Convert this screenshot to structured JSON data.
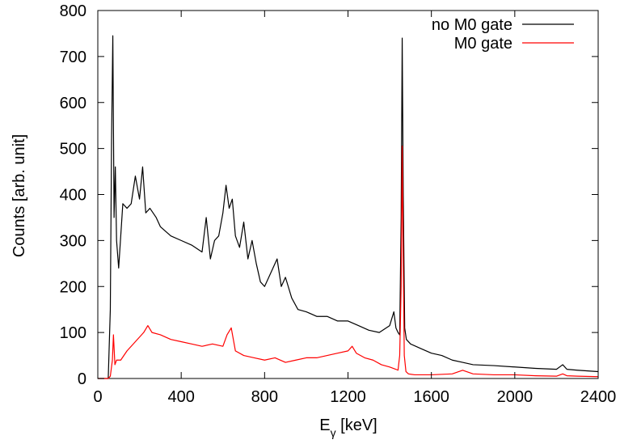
{
  "chart_data": {
    "type": "line",
    "title": "",
    "xlabel_main": "E",
    "xlabel_sub": "γ",
    "xlabel_unit": " [keV]",
    "ylabel": "Counts [arb. unit]",
    "xlim": [
      0,
      2400
    ],
    "ylim": [
      0,
      800
    ],
    "xticks": [
      "0",
      "400",
      "800",
      "1200",
      "1600",
      "2000",
      "2400"
    ],
    "yticks": [
      "0",
      "100",
      "200",
      "300",
      "400",
      "500",
      "600",
      "700",
      "800"
    ],
    "grid": false,
    "legend_position": "top-right",
    "series": [
      {
        "name": "no M0 gate",
        "color": "#000000",
        "x": [
          0,
          50,
          60,
          66,
          72,
          78,
          84,
          90,
          100,
          110,
          120,
          140,
          160,
          180,
          200,
          215,
          230,
          250,
          280,
          300,
          350,
          400,
          450,
          500,
          520,
          540,
          560,
          580,
          600,
          615,
          630,
          645,
          660,
          680,
          700,
          720,
          740,
          760,
          780,
          800,
          830,
          860,
          880,
          900,
          930,
          960,
          1000,
          1050,
          1100,
          1150,
          1200,
          1250,
          1300,
          1350,
          1400,
          1420,
          1430,
          1440,
          1448,
          1455,
          1460,
          1465,
          1472,
          1480,
          1500,
          1550,
          1600,
          1650,
          1700,
          1750,
          1800,
          1900,
          2000,
          2100,
          2200,
          2230,
          2250,
          2300,
          2400
        ],
        "y": [
          0,
          0,
          150,
          520,
          745,
          350,
          460,
          300,
          240,
          310,
          380,
          370,
          380,
          440,
          390,
          460,
          360,
          370,
          350,
          330,
          310,
          300,
          290,
          275,
          350,
          260,
          300,
          310,
          360,
          420,
          370,
          390,
          310,
          285,
          340,
          260,
          300,
          250,
          210,
          200,
          230,
          260,
          200,
          220,
          175,
          150,
          145,
          135,
          135,
          125,
          125,
          115,
          105,
          100,
          115,
          145,
          110,
          100,
          95,
          350,
          740,
          400,
          110,
          85,
          75,
          65,
          55,
          50,
          40,
          35,
          30,
          28,
          25,
          22,
          20,
          30,
          20,
          18,
          15
        ]
      },
      {
        "name": "M0 gate",
        "color": "#ff0000",
        "x": [
          0,
          50,
          60,
          70,
          75,
          82,
          90,
          110,
          140,
          180,
          220,
          240,
          260,
          300,
          350,
          400,
          450,
          500,
          550,
          600,
          620,
          640,
          660,
          700,
          750,
          800,
          850,
          900,
          950,
          1000,
          1050,
          1100,
          1150,
          1200,
          1220,
          1240,
          1280,
          1320,
          1360,
          1400,
          1430,
          1440,
          1448,
          1455,
          1460,
          1465,
          1470,
          1478,
          1490,
          1520,
          1600,
          1700,
          1750,
          1800,
          1900,
          2000,
          2100,
          2200,
          2230,
          2250,
          2300,
          2400
        ],
        "y": [
          0,
          0,
          5,
          40,
          95,
          30,
          40,
          40,
          60,
          80,
          100,
          115,
          100,
          95,
          85,
          80,
          75,
          70,
          75,
          70,
          95,
          110,
          60,
          50,
          45,
          40,
          45,
          35,
          40,
          45,
          45,
          50,
          55,
          60,
          70,
          55,
          45,
          40,
          30,
          25,
          20,
          18,
          50,
          200,
          505,
          250,
          50,
          15,
          10,
          8,
          8,
          10,
          18,
          10,
          8,
          8,
          6,
          5,
          10,
          6,
          5,
          4
        ]
      }
    ]
  }
}
